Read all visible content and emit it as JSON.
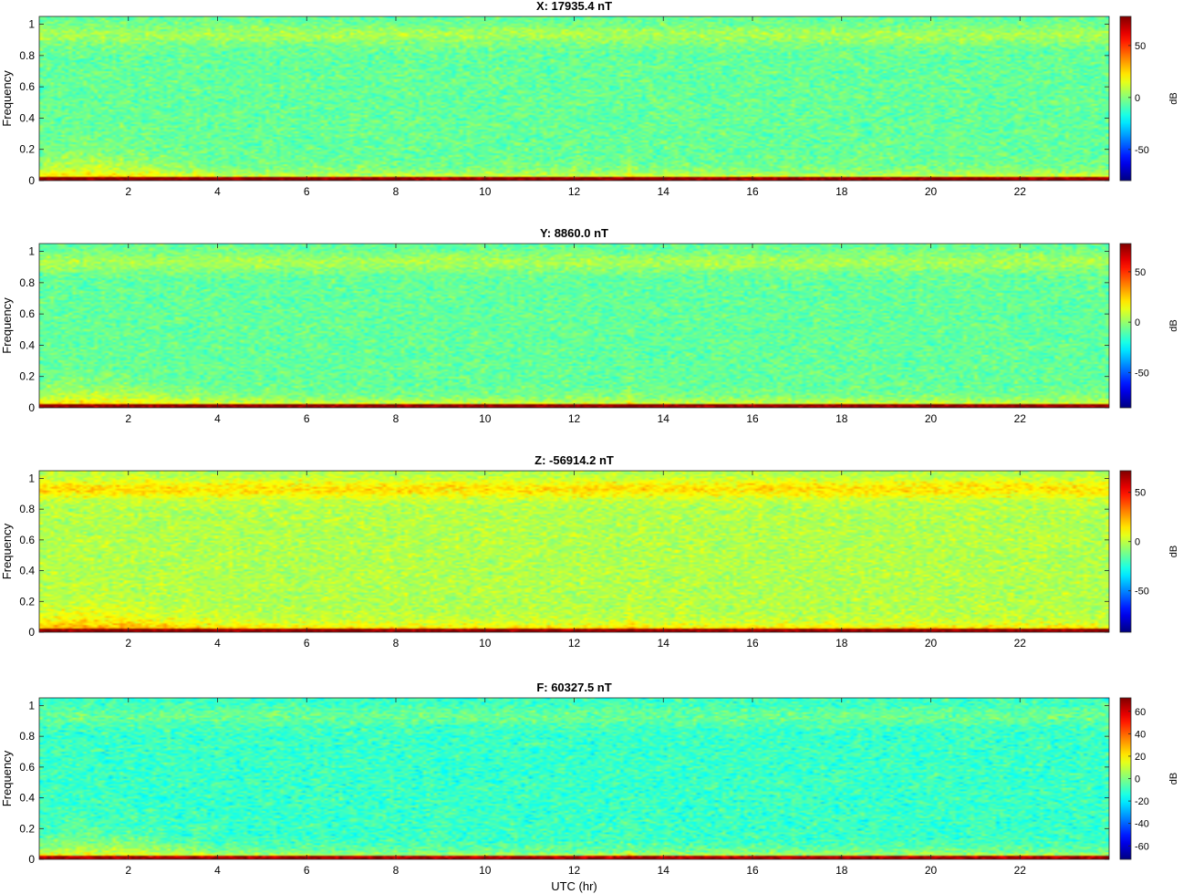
{
  "chart_data": [
    {
      "type": "heatmap",
      "title": "X: 17935.4 nT",
      "ylabel": "Frequency",
      "xlabel": "",
      "xlim": [
        0,
        24
      ],
      "ylim": [
        0,
        1.05
      ],
      "xticks": [
        2,
        4,
        6,
        8,
        10,
        12,
        14,
        16,
        18,
        20,
        22
      ],
      "yticks": [
        0,
        0.2,
        0.4,
        0.6,
        0.8,
        1
      ],
      "colorbar": {
        "label": "dB",
        "range": [
          -80,
          78
        ],
        "ticks": [
          50,
          0,
          -50
        ]
      },
      "levels": {
        "background_db": -5,
        "high_freq_band_db": 5,
        "low_freq_band_db": 40,
        "dc_db": 75
      },
      "features": [
        {
          "name": "spike",
          "x": 13.25
        },
        {
          "name": "spike",
          "x": 3.5
        }
      ]
    },
    {
      "type": "heatmap",
      "title": "Y: 8860.0 nT",
      "ylabel": "Frequency",
      "xlabel": "",
      "xlim": [
        0,
        24
      ],
      "ylim": [
        0,
        1.05
      ],
      "xticks": [
        2,
        4,
        6,
        8,
        10,
        12,
        14,
        16,
        18,
        20,
        22
      ],
      "yticks": [
        0,
        0.2,
        0.4,
        0.6,
        0.8,
        1
      ],
      "colorbar": {
        "label": "dB",
        "range": [
          -85,
          78
        ],
        "ticks": [
          50,
          0,
          -50
        ]
      },
      "levels": {
        "background_db": -8,
        "high_freq_band_db": 3,
        "low_freq_band_db": 38,
        "dc_db": 75
      },
      "features": [
        {
          "name": "spike",
          "x": 13.25
        },
        {
          "name": "spike",
          "x": 3.5
        }
      ]
    },
    {
      "type": "heatmap",
      "title": "Z: -56914.2 nT",
      "ylabel": "Frequency",
      "xlabel": "",
      "xlim": [
        0,
        24
      ],
      "ylim": [
        0,
        1.05
      ],
      "xticks": [
        2,
        4,
        6,
        8,
        10,
        12,
        14,
        16,
        18,
        20,
        22
      ],
      "yticks": [
        0,
        0.2,
        0.4,
        0.6,
        0.8,
        1
      ],
      "colorbar": {
        "label": "dB",
        "range": [
          -92,
          72
        ],
        "ticks": [
          50,
          0,
          -50
        ]
      },
      "levels": {
        "background_db": -2,
        "high_freq_band_db": 15,
        "low_freq_band_db": 42,
        "dc_db": 68
      },
      "features": [
        {
          "name": "spike",
          "x": 13.25
        },
        {
          "name": "spike",
          "x": 3.5
        }
      ]
    },
    {
      "type": "heatmap",
      "title": "F: 60327.5 nT",
      "ylabel": "Frequency",
      "xlabel": "UTC (hr)",
      "xlim": [
        0,
        24
      ],
      "ylim": [
        0,
        1.05
      ],
      "xticks": [
        2,
        4,
        6,
        8,
        10,
        12,
        14,
        16,
        18,
        20,
        22
      ],
      "yticks": [
        0,
        0.2,
        0.4,
        0.6,
        0.8,
        1
      ],
      "colorbar": {
        "label": "dB",
        "range": [
          -72,
          72
        ],
        "ticks": [
          60,
          40,
          20,
          0,
          -20,
          -40,
          -60
        ]
      },
      "levels": {
        "background_db": -10,
        "high_freq_band_db": -3,
        "low_freq_band_db": 35,
        "dc_db": 65
      },
      "features": [
        {
          "name": "spike",
          "x": 13.25
        },
        {
          "name": "spike",
          "x": 3.5
        }
      ]
    }
  ]
}
